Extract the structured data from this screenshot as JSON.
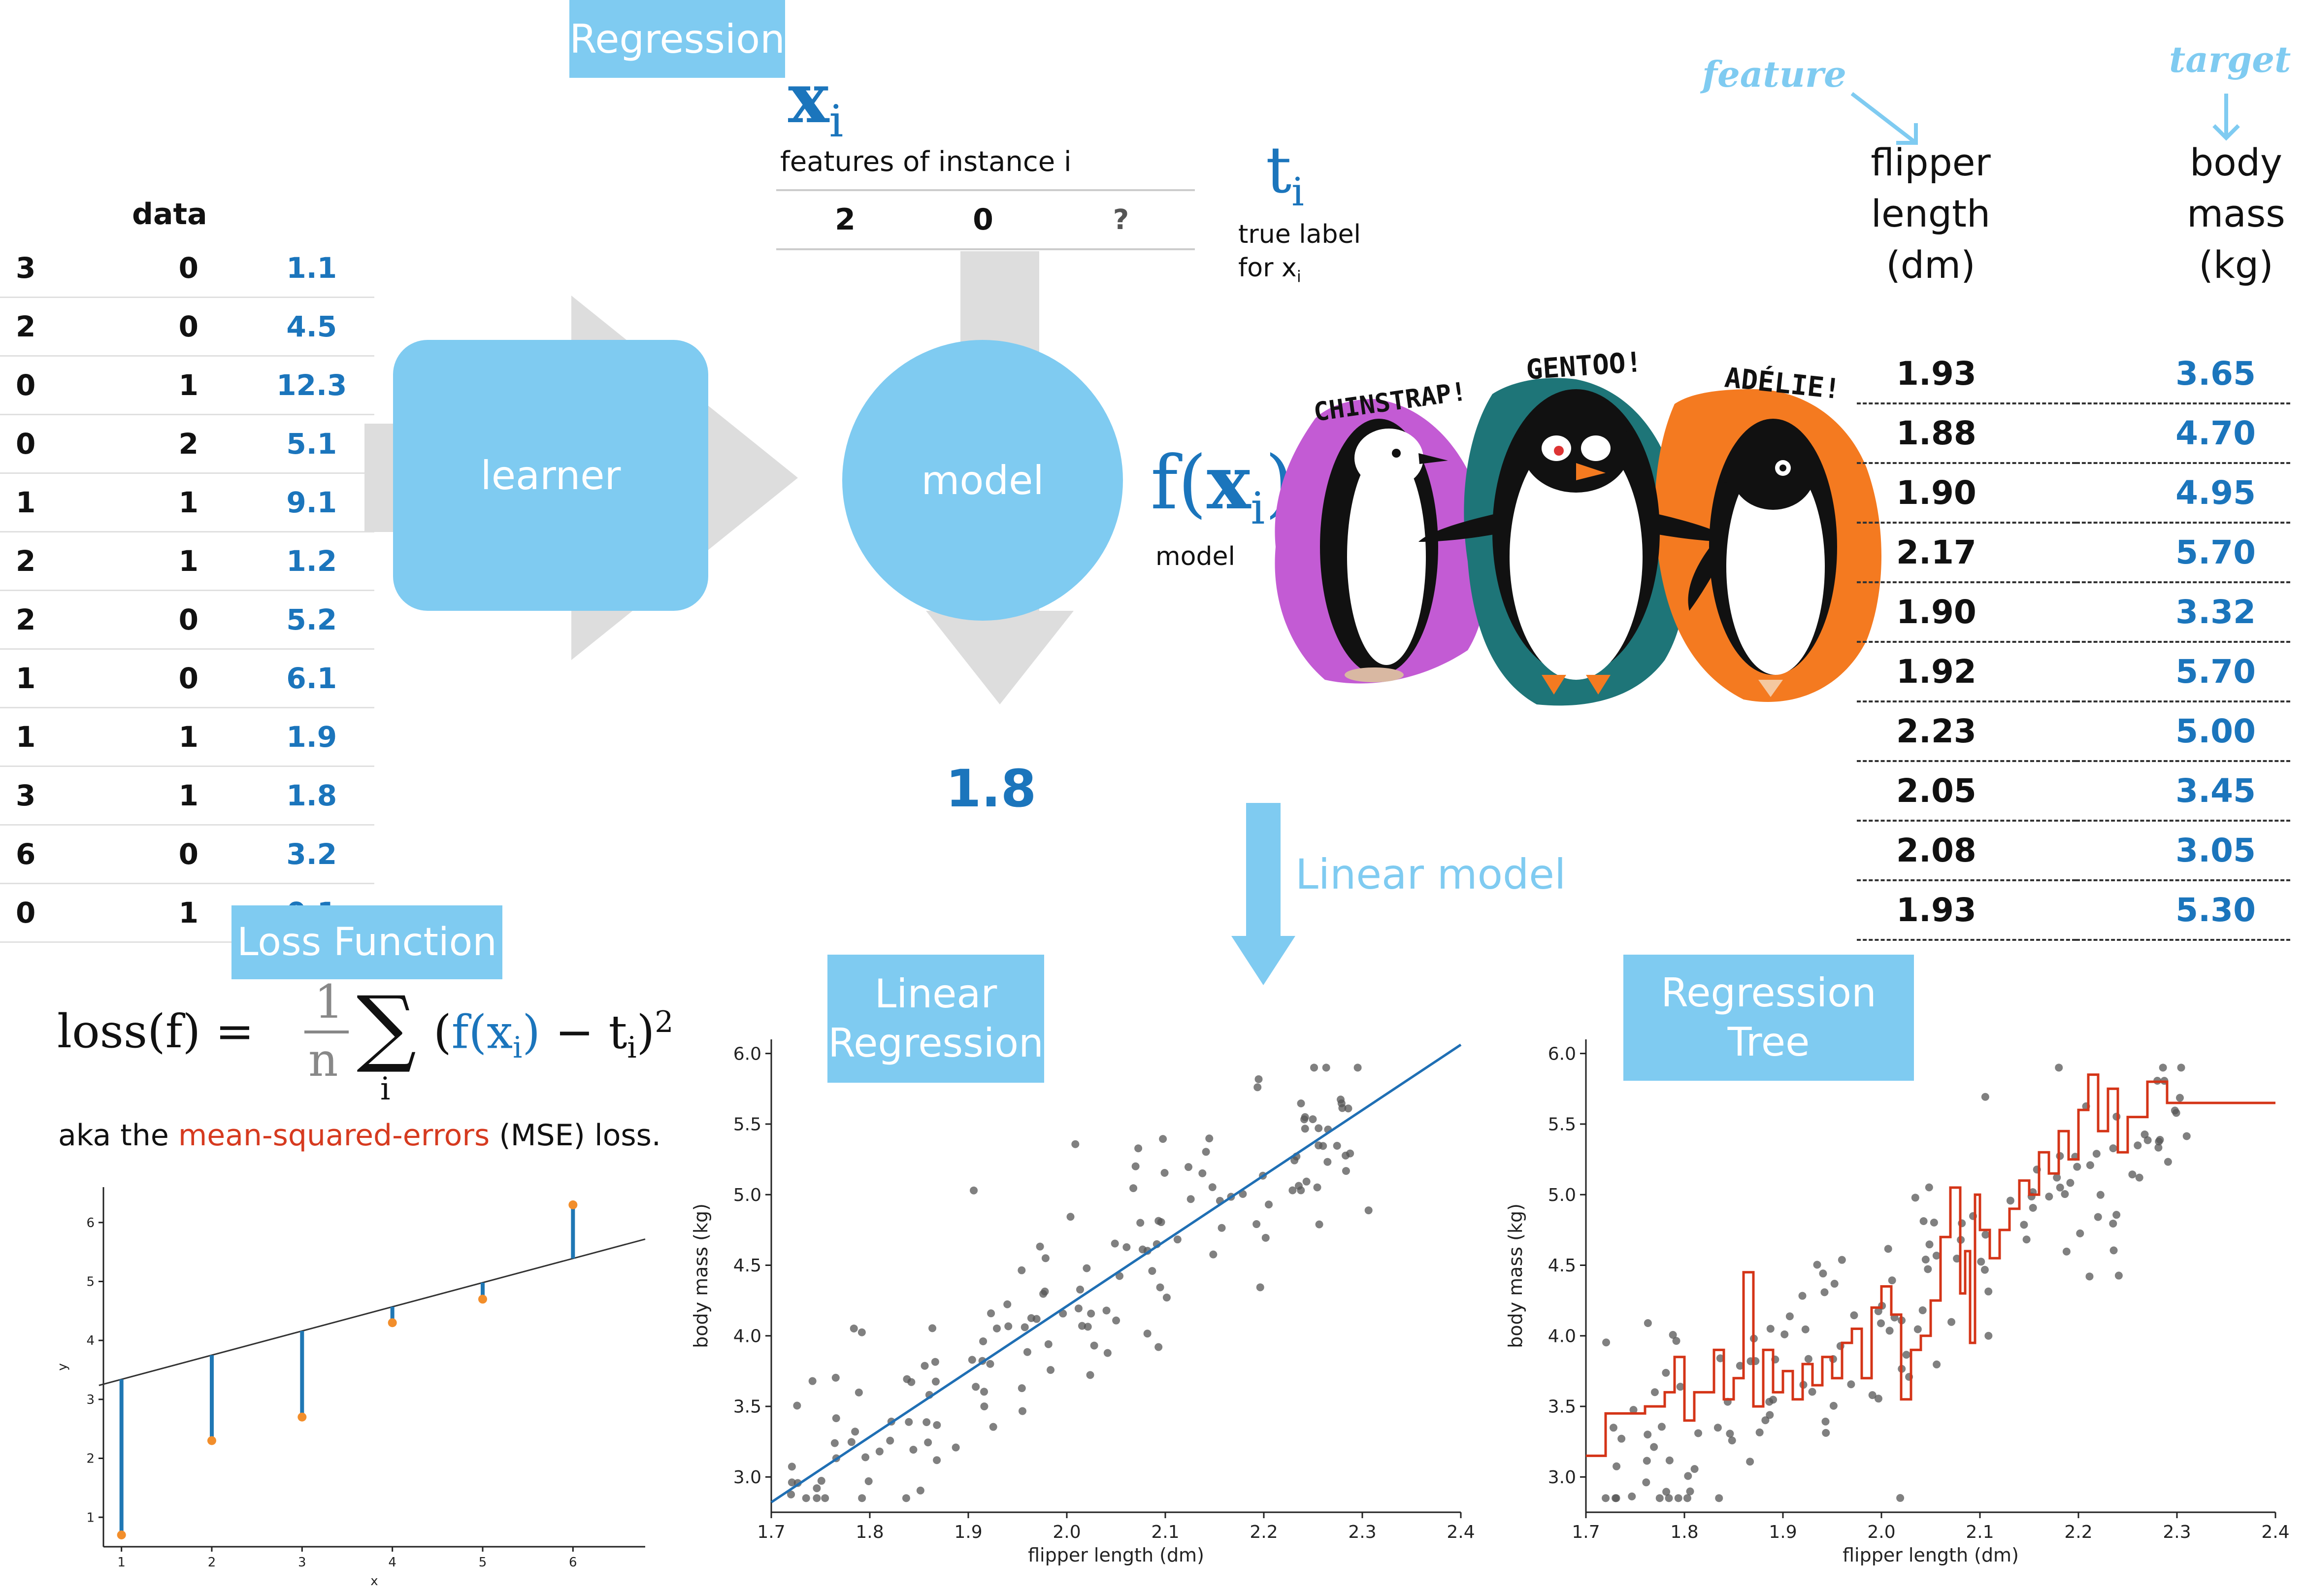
{
  "sections": {
    "regression": "Regression",
    "loss_function": "Loss Function",
    "linear_regression": [
      "Linear",
      "Regression"
    ],
    "regression_tree": [
      "Regression",
      "Tree"
    ],
    "linear_model": "Linear model"
  },
  "data_table": {
    "title": "data",
    "rows": [
      [
        "3",
        "0",
        "1.1"
      ],
      [
        "2",
        "0",
        "4.5"
      ],
      [
        "0",
        "1",
        "12.3"
      ],
      [
        "0",
        "2",
        "5.1"
      ],
      [
        "1",
        "1",
        "9.1"
      ],
      [
        "2",
        "1",
        "1.2"
      ],
      [
        "2",
        "0",
        "5.2"
      ],
      [
        "1",
        "0",
        "6.1"
      ],
      [
        "1",
        "1",
        "1.9"
      ],
      [
        "3",
        "1",
        "1.8"
      ],
      [
        "6",
        "0",
        "3.2"
      ],
      [
        "0",
        "1",
        "0.1"
      ]
    ]
  },
  "flow": {
    "learner": "learner",
    "model": "model",
    "instance_symbol": "x",
    "instance_sub": "i",
    "instance_caption": "features of instance i",
    "instance_values": [
      "2",
      "0",
      "?"
    ],
    "true_label_symbol": "t",
    "true_label_sub": "i",
    "true_label_caption_1": "true label",
    "true_label_caption_2": "for x",
    "true_label_caption_sub": "i",
    "model_func_f": "f",
    "model_func_x": "x",
    "model_func_sub": "i",
    "model_caption": "model",
    "prediction": "1.8"
  },
  "penguins": {
    "chinstrap": "CHINSTRAP!",
    "gentoo": "GENTOO!",
    "adelie": "ADÉLIE!",
    "colors": {
      "chinstrap": "#c35bd4",
      "gentoo": "#1e7578",
      "adelie": "#f47a20"
    }
  },
  "feature_table": {
    "feature_label": "feature",
    "target_label": "target",
    "header_feature": [
      "flipper",
      "length",
      "(dm)"
    ],
    "header_target": [
      "body",
      "mass",
      "(kg)"
    ],
    "rows": [
      [
        "1.93",
        "3.65"
      ],
      [
        "1.88",
        "4.70"
      ],
      [
        "1.90",
        "4.95"
      ],
      [
        "2.17",
        "5.70"
      ],
      [
        "1.90",
        "3.32"
      ],
      [
        "1.92",
        "5.70"
      ],
      [
        "2.23",
        "5.00"
      ],
      [
        "2.05",
        "3.45"
      ],
      [
        "2.08",
        "3.05"
      ],
      [
        "1.93",
        "5.30"
      ]
    ]
  },
  "loss": {
    "lhs": "loss(f) =",
    "numerator": "1",
    "denominator": "n",
    "sum_index": "i",
    "rhs_open": "(",
    "rhs_f": "f(x",
    "rhs_sub": "i",
    "rhs_close_f": ")",
    "rhs_minus": " − t",
    "rhs_close": ")",
    "exponent": "2",
    "caption_pre": "aka the ",
    "caption_highlight": "mean-squared-errors",
    "caption_post": " (MSE) loss.",
    "highlight_color": "#d63a1f"
  },
  "chart_data": [
    {
      "type": "scatter",
      "title": "",
      "xlabel": "x",
      "ylabel": "y",
      "xlim": [
        0.8,
        6.8
      ],
      "ylim": [
        0.5,
        6.6
      ],
      "x_ticks": [
        1,
        2,
        3,
        4,
        5,
        6
      ],
      "y_ticks": [
        1,
        2,
        3,
        4,
        5,
        6
      ],
      "points": [
        [
          1,
          0.7
        ],
        [
          2,
          2.3
        ],
        [
          3,
          2.7
        ],
        [
          4,
          4.3
        ],
        [
          5,
          4.7
        ],
        [
          6,
          6.3
        ]
      ],
      "fit_line": {
        "slope": 0.41,
        "intercept": 2.93
      },
      "colors": {
        "points": "#f28e2b",
        "residuals": "#1f77b4",
        "line": "#333333"
      }
    },
    {
      "type": "scatter",
      "title": "",
      "xlabel": "flipper length (dm)",
      "ylabel": "body mass (kg)",
      "xlim": [
        1.7,
        2.4
      ],
      "ylim": [
        2.75,
        6.1
      ],
      "x_ticks": [
        1.7,
        1.8,
        1.9,
        2.0,
        2.1,
        2.2,
        2.3,
        2.4
      ],
      "y_ticks": [
        3.0,
        3.5,
        4.0,
        4.5,
        5.0,
        5.5,
        6.0
      ],
      "fit_line": {
        "slope": 4.63,
        "intercept": -5.05
      },
      "point_seed": 7,
      "colors": {
        "points": "#555555",
        "line": "#1f6fb4"
      }
    },
    {
      "type": "scatter",
      "title": "",
      "xlabel": "flipper length (dm)",
      "ylabel": "body mass (kg)",
      "xlim": [
        1.7,
        2.4
      ],
      "ylim": [
        2.75,
        6.1
      ],
      "x_ticks": [
        1.7,
        1.8,
        1.9,
        2.0,
        2.1,
        2.2,
        2.3,
        2.4
      ],
      "y_ticks": [
        3.0,
        3.5,
        4.0,
        4.5,
        5.0,
        5.5,
        6.0
      ],
      "step_line": [
        [
          1.7,
          3.15
        ],
        [
          1.72,
          3.15
        ],
        [
          1.72,
          3.45
        ],
        [
          1.76,
          3.45
        ],
        [
          1.76,
          3.5
        ],
        [
          1.78,
          3.5
        ],
        [
          1.78,
          3.6
        ],
        [
          1.79,
          3.6
        ],
        [
          1.79,
          3.85
        ],
        [
          1.8,
          3.85
        ],
        [
          1.8,
          3.4
        ],
        [
          1.81,
          3.4
        ],
        [
          1.81,
          3.6
        ],
        [
          1.83,
          3.6
        ],
        [
          1.83,
          3.9
        ],
        [
          1.84,
          3.9
        ],
        [
          1.84,
          3.55
        ],
        [
          1.85,
          3.55
        ],
        [
          1.85,
          3.7
        ],
        [
          1.86,
          3.7
        ],
        [
          1.86,
          4.45
        ],
        [
          1.87,
          4.45
        ],
        [
          1.87,
          3.5
        ],
        [
          1.88,
          3.5
        ],
        [
          1.88,
          3.9
        ],
        [
          1.89,
          3.9
        ],
        [
          1.89,
          3.6
        ],
        [
          1.9,
          3.6
        ],
        [
          1.9,
          3.75
        ],
        [
          1.91,
          3.75
        ],
        [
          1.91,
          3.55
        ],
        [
          1.92,
          3.55
        ],
        [
          1.92,
          3.8
        ],
        [
          1.93,
          3.8
        ],
        [
          1.93,
          3.65
        ],
        [
          1.94,
          3.65
        ],
        [
          1.94,
          3.85
        ],
        [
          1.95,
          3.85
        ],
        [
          1.95,
          3.7
        ],
        [
          1.96,
          3.7
        ],
        [
          1.96,
          3.95
        ],
        [
          1.97,
          3.95
        ],
        [
          1.97,
          4.05
        ],
        [
          1.98,
          4.05
        ],
        [
          1.98,
          3.7
        ],
        [
          1.99,
          3.7
        ],
        [
          1.99,
          4.2
        ],
        [
          2.0,
          4.2
        ],
        [
          2.0,
          4.35
        ],
        [
          2.01,
          4.35
        ],
        [
          2.01,
          4.15
        ],
        [
          2.02,
          4.15
        ],
        [
          2.02,
          3.55
        ],
        [
          2.03,
          3.55
        ],
        [
          2.03,
          3.9
        ],
        [
          2.04,
          3.9
        ],
        [
          2.04,
          4.0
        ],
        [
          2.05,
          4.0
        ],
        [
          2.05,
          4.25
        ],
        [
          2.06,
          4.25
        ],
        [
          2.06,
          4.7
        ],
        [
          2.07,
          4.7
        ],
        [
          2.07,
          5.05
        ],
        [
          2.08,
          5.05
        ],
        [
          2.08,
          4.3
        ],
        [
          2.085,
          4.3
        ],
        [
          2.085,
          4.6
        ],
        [
          2.09,
          4.6
        ],
        [
          2.09,
          3.95
        ],
        [
          2.095,
          3.95
        ],
        [
          2.095,
          5.0
        ],
        [
          2.1,
          5.0
        ],
        [
          2.1,
          4.75
        ],
        [
          2.11,
          4.75
        ],
        [
          2.11,
          4.55
        ],
        [
          2.12,
          4.55
        ],
        [
          2.12,
          4.75
        ],
        [
          2.13,
          4.75
        ],
        [
          2.13,
          4.9
        ],
        [
          2.14,
          4.9
        ],
        [
          2.14,
          5.1
        ],
        [
          2.15,
          5.1
        ],
        [
          2.15,
          5.0
        ],
        [
          2.16,
          5.0
        ],
        [
          2.16,
          5.3
        ],
        [
          2.17,
          5.3
        ],
        [
          2.17,
          5.15
        ],
        [
          2.18,
          5.15
        ],
        [
          2.18,
          5.45
        ],
        [
          2.19,
          5.45
        ],
        [
          2.19,
          5.25
        ],
        [
          2.2,
          5.25
        ],
        [
          2.2,
          5.6
        ],
        [
          2.21,
          5.6
        ],
        [
          2.21,
          5.85
        ],
        [
          2.22,
          5.85
        ],
        [
          2.22,
          5.45
        ],
        [
          2.23,
          5.45
        ],
        [
          2.23,
          5.75
        ],
        [
          2.24,
          5.75
        ],
        [
          2.24,
          5.3
        ],
        [
          2.25,
          5.3
        ],
        [
          2.25,
          5.55
        ],
        [
          2.27,
          5.55
        ],
        [
          2.27,
          5.8
        ],
        [
          2.29,
          5.8
        ],
        [
          2.29,
          5.65
        ],
        [
          2.4,
          5.65
        ]
      ],
      "point_seed": 11,
      "colors": {
        "points": "#555555",
        "line": "#d43417"
      }
    }
  ]
}
